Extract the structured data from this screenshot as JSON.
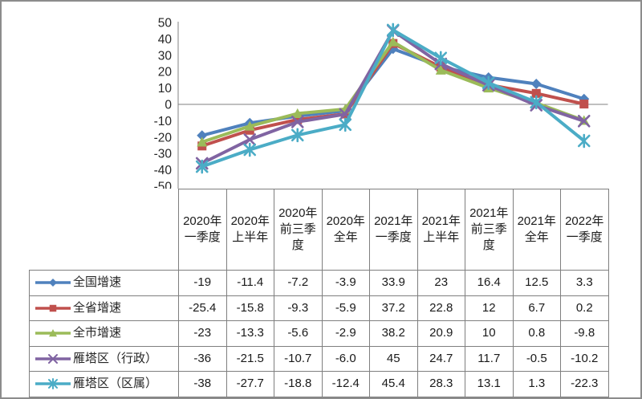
{
  "window": {
    "border_color": "#8c8c8c",
    "background": "#ffffff"
  },
  "chart_data": {
    "type": "line",
    "title": "",
    "categories": [
      "2020年一季度",
      "2020年上半年",
      "2020年前三季度",
      "2020年全年",
      "2021年一季度",
      "2021年上半年",
      "2021年前三季度",
      "2021年全年",
      "2022年一季度"
    ],
    "series": [
      {
        "name": "全国增速",
        "color": "#4F81BD",
        "marker": "diamond",
        "values": [
          -19,
          -11.4,
          -7.2,
          -3.9,
          33.9,
          23,
          16.4,
          12.5,
          3.3
        ],
        "display": [
          "-19",
          "-11.4",
          "-7.2",
          "-3.9",
          "33.9",
          "23",
          "16.4",
          "12.5",
          "3.3"
        ]
      },
      {
        "name": "全省增速",
        "color": "#C0504D",
        "marker": "square",
        "values": [
          -25.4,
          -15.8,
          -9.3,
          -5.9,
          37.2,
          22.8,
          12,
          6.7,
          0.2
        ],
        "display": [
          "-25.4",
          "-15.8",
          "-9.3",
          "-5.9",
          "37.2",
          "22.8",
          "12",
          "6.7",
          "0.2"
        ]
      },
      {
        "name": "全市增速",
        "color": "#9BBB59",
        "marker": "triangle",
        "values": [
          -23,
          -13.3,
          -5.6,
          -2.9,
          38.2,
          20.9,
          10,
          0.8,
          -9.8
        ],
        "display": [
          "-23",
          "-13.3",
          "-5.6",
          "-2.9",
          "38.2",
          "20.9",
          "10",
          "0.8",
          "-9.8"
        ]
      },
      {
        "name": "雁塔区（行政）",
        "color": "#8064A2",
        "marker": "x",
        "values": [
          -36,
          -21.5,
          -10.7,
          -6.0,
          45,
          24.7,
          11.7,
          -0.5,
          -10.2
        ],
        "display": [
          "-36",
          "-21.5",
          "-10.7",
          "-6.0",
          "45",
          "24.7",
          "11.7",
          "-0.5",
          "-10.2"
        ]
      },
      {
        "name": "雁塔区（区属）",
        "color": "#4BACC6",
        "marker": "asterisk",
        "values": [
          -38,
          -27.7,
          -18.8,
          -12.4,
          45.4,
          28.3,
          13.1,
          1.3,
          -22.3
        ],
        "display": [
          "-38",
          "-27.7",
          "-18.8",
          "-12.4",
          "45.4",
          "28.3",
          "13.1",
          "1.3",
          "-22.3"
        ]
      }
    ],
    "ylim": [
      -50,
      50
    ],
    "yticks": [
      50,
      40,
      30,
      20,
      10,
      0,
      -10,
      -20,
      -30,
      -40,
      -50
    ],
    "xlabel": "",
    "ylabel": "",
    "grid": "zero-line-only",
    "axis_color": "#808080",
    "tick_label_color": "#262626",
    "legend_position": "data-table-left-column"
  },
  "table": {
    "border_color": "#7f7f7f",
    "text_color": "#1a1a1a"
  }
}
